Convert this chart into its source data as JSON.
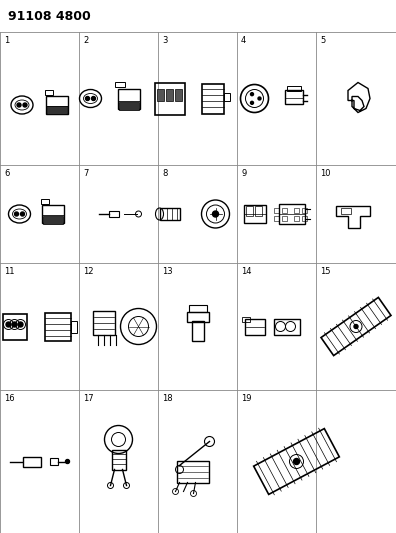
{
  "title": "91108 4800",
  "background_color": "#ffffff",
  "line_color": "#000000",
  "grid_color": "#888888",
  "figsize": [
    3.96,
    5.33
  ],
  "dpi": 100,
  "grid_lw": 0.6,
  "title_fontsize": 9,
  "label_fontsize": 6
}
